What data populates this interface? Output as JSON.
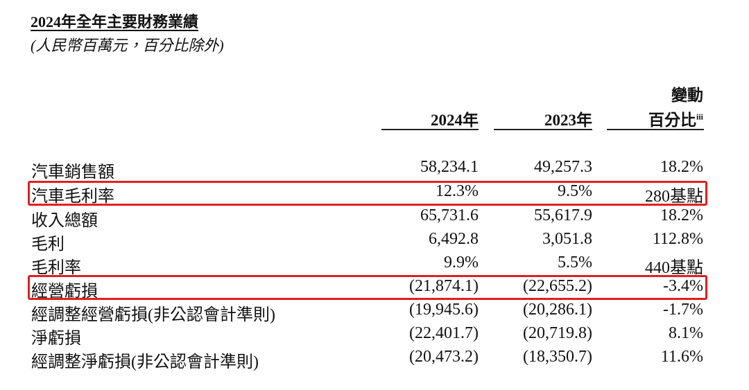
{
  "header": {
    "title": "2024年全年主要財務業績",
    "subtitle": "(人民幣百萬元，百分比除外)"
  },
  "table": {
    "columns": [
      "2024年",
      "2023年",
      {
        "line1": "變動",
        "line2": "百分比",
        "note": "iii"
      }
    ],
    "rows": [
      [
        "汽車銷售額",
        "58,234.1",
        "49,257.3",
        "18.2%"
      ],
      [
        "汽車毛利率",
        "12.3%",
        "9.5%",
        "280基點"
      ],
      [
        "收入總額",
        "65,731.6",
        "55,617.9",
        "18.2%"
      ],
      [
        "毛利",
        "6,492.8",
        "3,051.8",
        "112.8%"
      ],
      [
        "毛利率",
        "9.9%",
        "5.5%",
        "440基點"
      ],
      [
        "經營虧損",
        "(21,874.1)",
        "(22,655.2)",
        "-3.4%"
      ],
      [
        "經調整經營虧損(非公認會計準則)",
        "(19,945.6)",
        "(20,286.1)",
        "-1.7%"
      ],
      [
        "淨虧損",
        "(22,401.7)",
        "(20,719.8)",
        "8.1%"
      ],
      [
        "經調整淨虧損(非公認會計準則)",
        "(20,473.2)",
        "(18,350.7)",
        "11.6%"
      ]
    ]
  }
}
